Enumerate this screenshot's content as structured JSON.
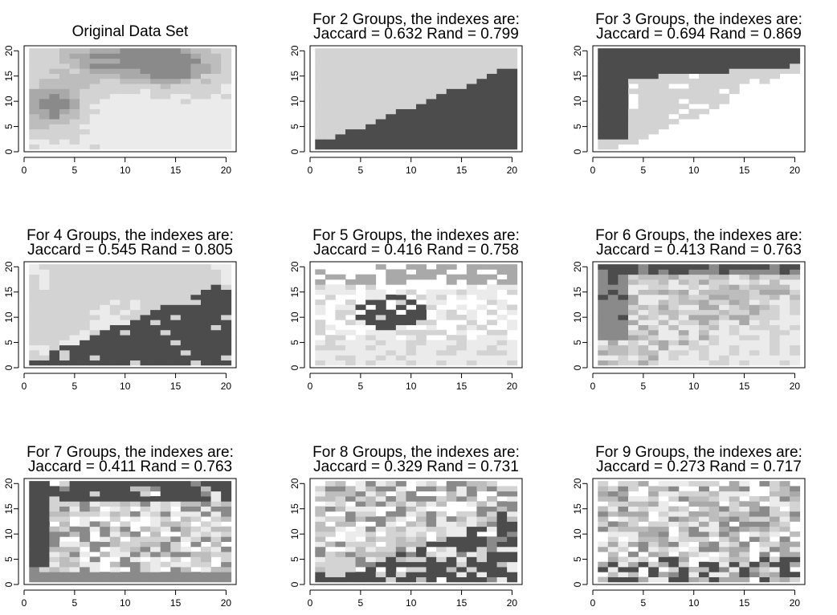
{
  "figure": {
    "axis_ticks": [
      0,
      5,
      10,
      15,
      20
    ],
    "xlim": [
      0,
      21
    ],
    "ylim": [
      0,
      21
    ],
    "cell_colors": [
      "#ffffff",
      "#ebebeb",
      "#d3d3d3",
      "#bdbdbd",
      "#a9a9a9",
      "#8a8a8a",
      "#4c4c4c"
    ]
  },
  "chart_data": [
    {
      "type": "heatmap",
      "panel": "original",
      "title": "Original Data Set",
      "subtitle": "",
      "xlim": [
        0,
        21
      ],
      "ylim": [
        0,
        21
      ],
      "grid": false
    },
    {
      "type": "heatmap",
      "panel": "groups-2",
      "title": "For  2  Groups, the indexes are:",
      "subtitle": "Jaccard =  0.632  Rand =  0.799",
      "groups": 2,
      "jaccard": 0.632,
      "rand": 0.799,
      "xlim": [
        0,
        21
      ],
      "ylim": [
        0,
        21
      ],
      "grid": false
    },
    {
      "type": "heatmap",
      "panel": "groups-3",
      "title": "For  3  Groups, the indexes are:",
      "subtitle": "Jaccard =  0.694  Rand =  0.869",
      "groups": 3,
      "jaccard": 0.694,
      "rand": 0.869,
      "xlim": [
        0,
        21
      ],
      "ylim": [
        0,
        21
      ],
      "grid": false
    },
    {
      "type": "heatmap",
      "panel": "groups-4",
      "title": "For  4  Groups, the indexes are:",
      "subtitle": "Jaccard =  0.545  Rand =  0.805",
      "groups": 4,
      "jaccard": 0.545,
      "rand": 0.805,
      "xlim": [
        0,
        21
      ],
      "ylim": [
        0,
        21
      ],
      "grid": false
    },
    {
      "type": "heatmap",
      "panel": "groups-5",
      "title": "For  5  Groups, the indexes are:",
      "subtitle": "Jaccard =  0.416  Rand =  0.758",
      "groups": 5,
      "jaccard": 0.416,
      "rand": 0.758,
      "xlim": [
        0,
        21
      ],
      "ylim": [
        0,
        21
      ],
      "grid": false
    },
    {
      "type": "heatmap",
      "panel": "groups-6",
      "title": "For  6  Groups, the indexes are:",
      "subtitle": "Jaccard =  0.413  Rand =  0.763",
      "groups": 6,
      "jaccard": 0.413,
      "rand": 0.763,
      "xlim": [
        0,
        21
      ],
      "ylim": [
        0,
        21
      ],
      "grid": false
    },
    {
      "type": "heatmap",
      "panel": "groups-7",
      "title": "For  7  Groups, the indexes are:",
      "subtitle": "Jaccard =  0.411  Rand =  0.763",
      "groups": 7,
      "jaccard": 0.411,
      "rand": 0.763,
      "xlim": [
        0,
        21
      ],
      "ylim": [
        0,
        21
      ],
      "grid": false
    },
    {
      "type": "heatmap",
      "panel": "groups-8",
      "title": "For  8  Groups, the indexes are:",
      "subtitle": "Jaccard =  0.329  Rand =  0.731",
      "groups": 8,
      "jaccard": 0.329,
      "rand": 0.731,
      "xlim": [
        0,
        21
      ],
      "ylim": [
        0,
        21
      ],
      "grid": false
    },
    {
      "type": "heatmap",
      "panel": "groups-9",
      "title": "For  9  Groups, the indexes are:",
      "subtitle": "Jaccard =  0.273  Rand =  0.717",
      "groups": 9,
      "jaccard": 0.273,
      "rand": 0.717,
      "xlim": [
        0,
        21
      ],
      "ylim": [
        0,
        21
      ],
      "grid": false
    }
  ]
}
